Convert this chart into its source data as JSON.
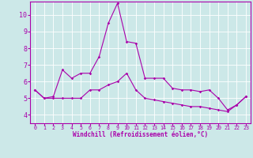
{
  "xlabel": "Windchill (Refroidissement éolien,°C)",
  "bg_color": "#cce8e8",
  "grid_color": "#ffffff",
  "line_color": "#aa00aa",
  "xlim": [
    -0.5,
    23.5
  ],
  "ylim": [
    3.5,
    10.8
  ],
  "yticks": [
    4,
    5,
    6,
    7,
    8,
    9,
    10
  ],
  "xticks": [
    0,
    1,
    2,
    3,
    4,
    5,
    6,
    7,
    8,
    9,
    10,
    11,
    12,
    13,
    14,
    15,
    16,
    17,
    18,
    19,
    20,
    21,
    22,
    23
  ],
  "series1_x": [
    0,
    1,
    2,
    3,
    4,
    5,
    6,
    7,
    8,
    9,
    10,
    11,
    12,
    13,
    14,
    15,
    16,
    17,
    18,
    19,
    20,
    21,
    22,
    23
  ],
  "series1_y": [
    5.5,
    5.0,
    5.1,
    6.7,
    6.2,
    6.5,
    6.5,
    7.5,
    9.5,
    10.7,
    8.4,
    8.3,
    6.2,
    6.2,
    6.2,
    5.6,
    5.5,
    5.5,
    5.4,
    5.5,
    5.0,
    4.3,
    4.6,
    5.1
  ],
  "series2_x": [
    0,
    1,
    2,
    3,
    4,
    5,
    6,
    7,
    8,
    9,
    10,
    11,
    12,
    13,
    14,
    15,
    16,
    17,
    18,
    19,
    20,
    21,
    22,
    23
  ],
  "series2_y": [
    5.5,
    5.0,
    5.0,
    5.0,
    5.0,
    5.0,
    5.5,
    5.5,
    5.8,
    6.0,
    6.5,
    5.5,
    5.0,
    4.9,
    4.8,
    4.7,
    4.6,
    4.5,
    4.5,
    4.4,
    4.3,
    4.2,
    4.6,
    5.1
  ],
  "xlabel_fontsize": 5.5,
  "ytick_fontsize": 6,
  "xtick_fontsize": 4.8
}
